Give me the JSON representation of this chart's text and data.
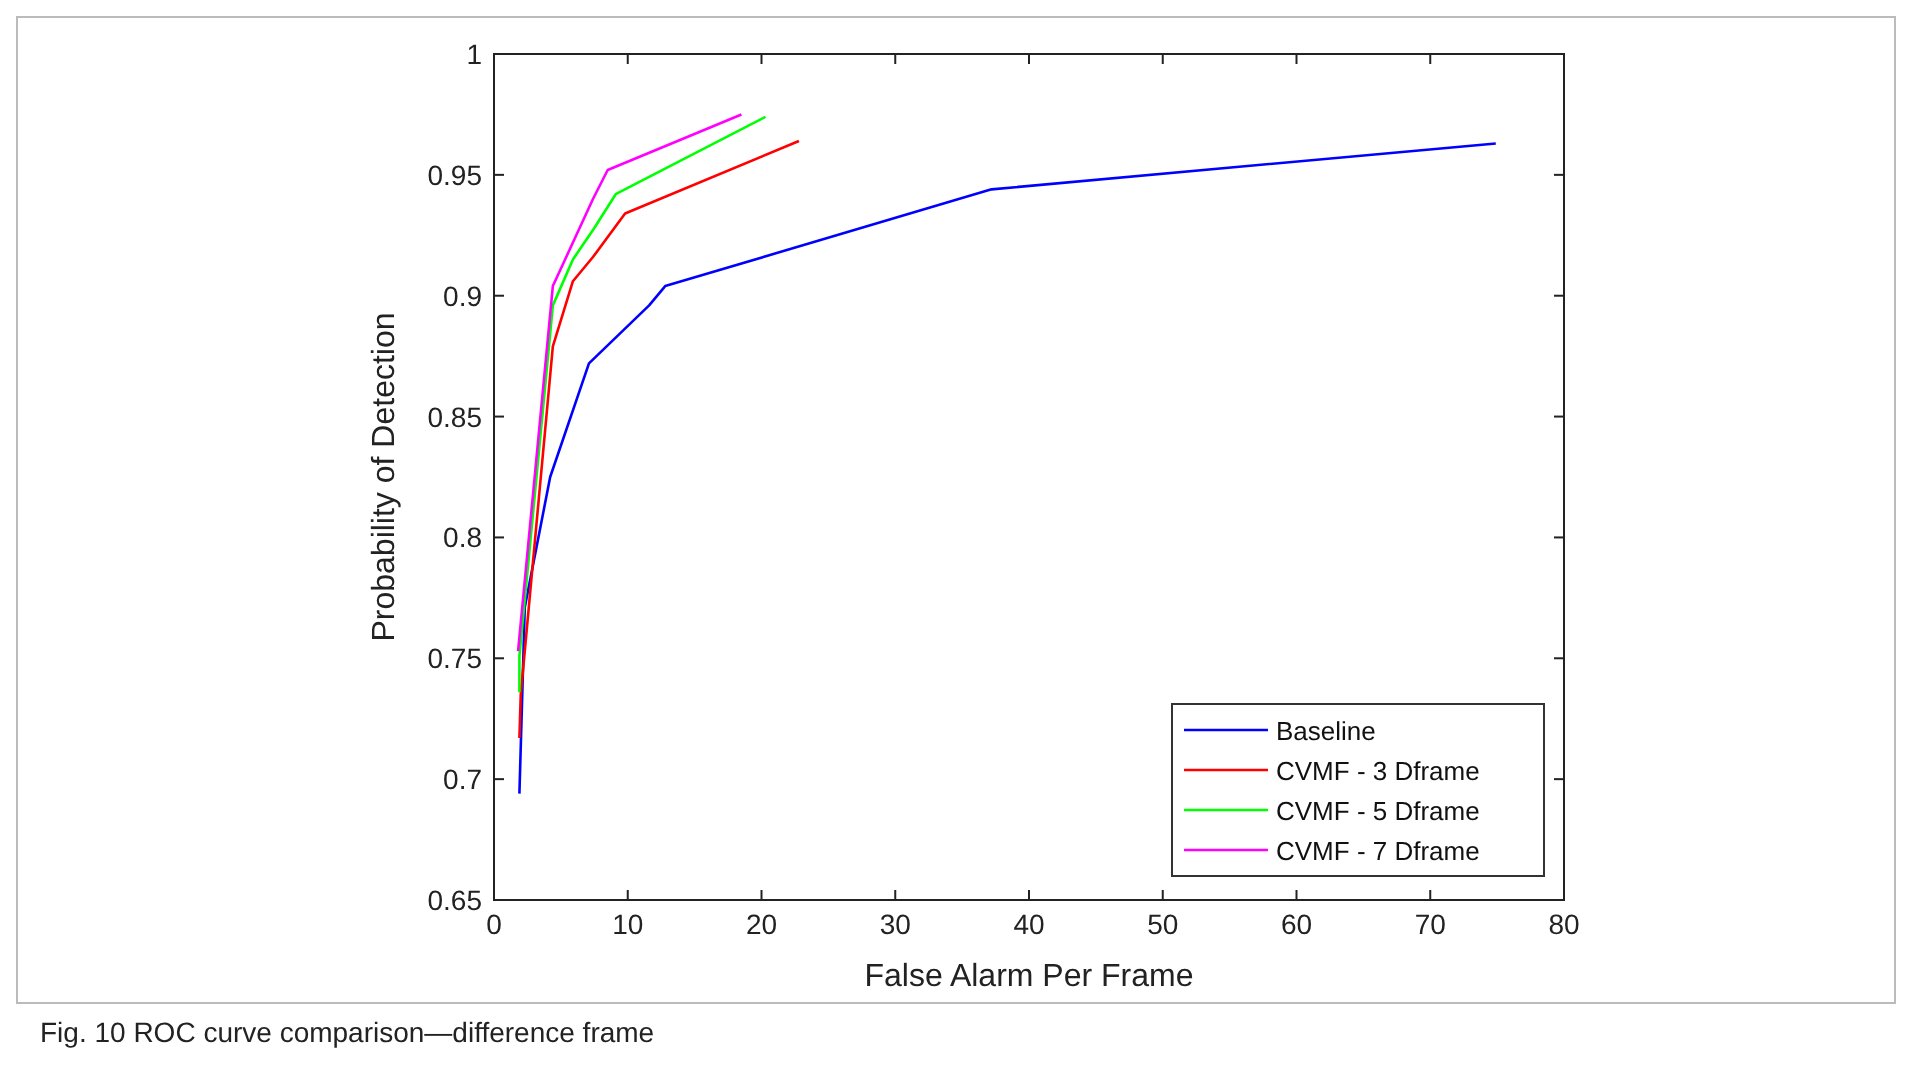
{
  "chart_data": {
    "type": "line",
    "xlabel": "False Alarm Per Frame",
    "ylabel": "Probability of Detection",
    "xlim": [
      0,
      80
    ],
    "xticks": [
      0,
      10,
      20,
      30,
      40,
      50,
      60,
      70,
      80
    ],
    "ylim": [
      0.65,
      1
    ],
    "yticks": [
      0.65,
      0.7,
      0.75,
      0.8,
      0.85,
      0.9,
      0.95,
      1
    ],
    "grid": false,
    "legend": "bottom right",
    "marker": "none",
    "line_style": "solid",
    "annotations": [
      "Fig. 10  ROC curve comparison—difference frame"
    ],
    "series": [
      {
        "name": "Baseline",
        "color": "#0000ff",
        "x": [
          1.9,
          2.3,
          4.2,
          7.1,
          11.6,
          12.8,
          37.2,
          74.9
        ],
        "values": [
          0.694,
          0.771,
          0.825,
          0.872,
          0.896,
          0.904,
          0.944,
          0.963
        ]
      },
      {
        "name": "CVMF - 3 Dframe",
        "color": "#ff0000",
        "x": [
          1.9,
          2.0,
          4.4,
          5.9,
          7.4,
          9.8,
          22.8
        ],
        "values": [
          0.717,
          0.735,
          0.879,
          0.906,
          0.916,
          0.934,
          0.964
        ]
      },
      {
        "name": "CVMF - 5 Dframe",
        "color": "#00ff00",
        "x": [
          1.9,
          1.9,
          4.4,
          5.9,
          7.5,
          9.1,
          20.3
        ],
        "values": [
          0.736,
          0.751,
          0.896,
          0.915,
          0.928,
          0.942,
          0.974
        ]
      },
      {
        "name": "CVMF - 7 Dframe",
        "color": "#ff00ff",
        "x": [
          1.8,
          4.4,
          7.4,
          8.5,
          18.5
        ],
        "values": [
          0.753,
          0.904,
          0.94,
          0.952,
          0.975
        ]
      }
    ]
  }
}
